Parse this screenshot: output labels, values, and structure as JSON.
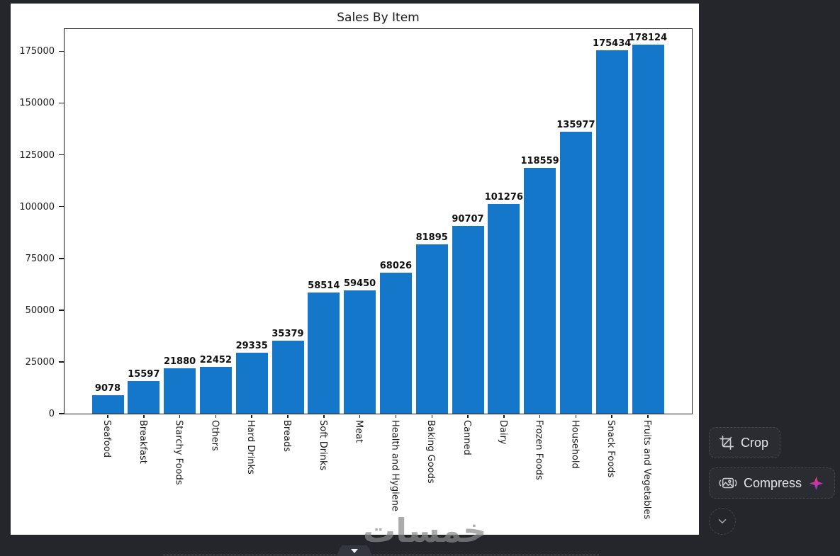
{
  "chart_data": {
    "type": "bar",
    "title": "Sales By Item",
    "categories": [
      "Seafood",
      "Breakfast",
      "Starchy Foods",
      "Others",
      "Hard Drinks",
      "Breads",
      "Soft Drinks",
      "Meat",
      "Health and Hygiene",
      "Baking Goods",
      "Canned",
      "Dairy",
      "Frozen Foods",
      "Household",
      "Snack Foods",
      "Fruits and Vegetables"
    ],
    "values": [
      9078,
      15597,
      21880,
      22452,
      29335,
      35379,
      58514,
      59450,
      68026,
      81895,
      90707,
      101276,
      118559,
      135977,
      175434,
      178124
    ],
    "value_labels": [
      "9078",
      "15597",
      "21880",
      "22452",
      "29335",
      "35379",
      "58514",
      "59450",
      "68026",
      "81895",
      "90707",
      "101276",
      "118559",
      "135977",
      "175434",
      "178124"
    ],
    "xlabel": "",
    "ylabel": "",
    "yticks": [
      0,
      25000,
      50000,
      75000,
      100000,
      125000,
      150000,
      175000
    ],
    "ylim": [
      0,
      186390
    ],
    "grid": false,
    "legend": "none",
    "bar_color": "#1577c9",
    "plot_background": "#ffffff",
    "text_color": "#1a1a1a"
  },
  "toolbar": {
    "crop_label": "Crop",
    "compress_label": "Compress",
    "sparkle_gradient_top": "#f43f5e",
    "sparkle_gradient_bottom": "#9333ea"
  },
  "watermark": {
    "text": "خمسات"
  },
  "theme": {
    "background": "#24262b",
    "button_background": "#2a2c32",
    "button_border": "#45484f",
    "button_text": "#e3e5e8"
  }
}
